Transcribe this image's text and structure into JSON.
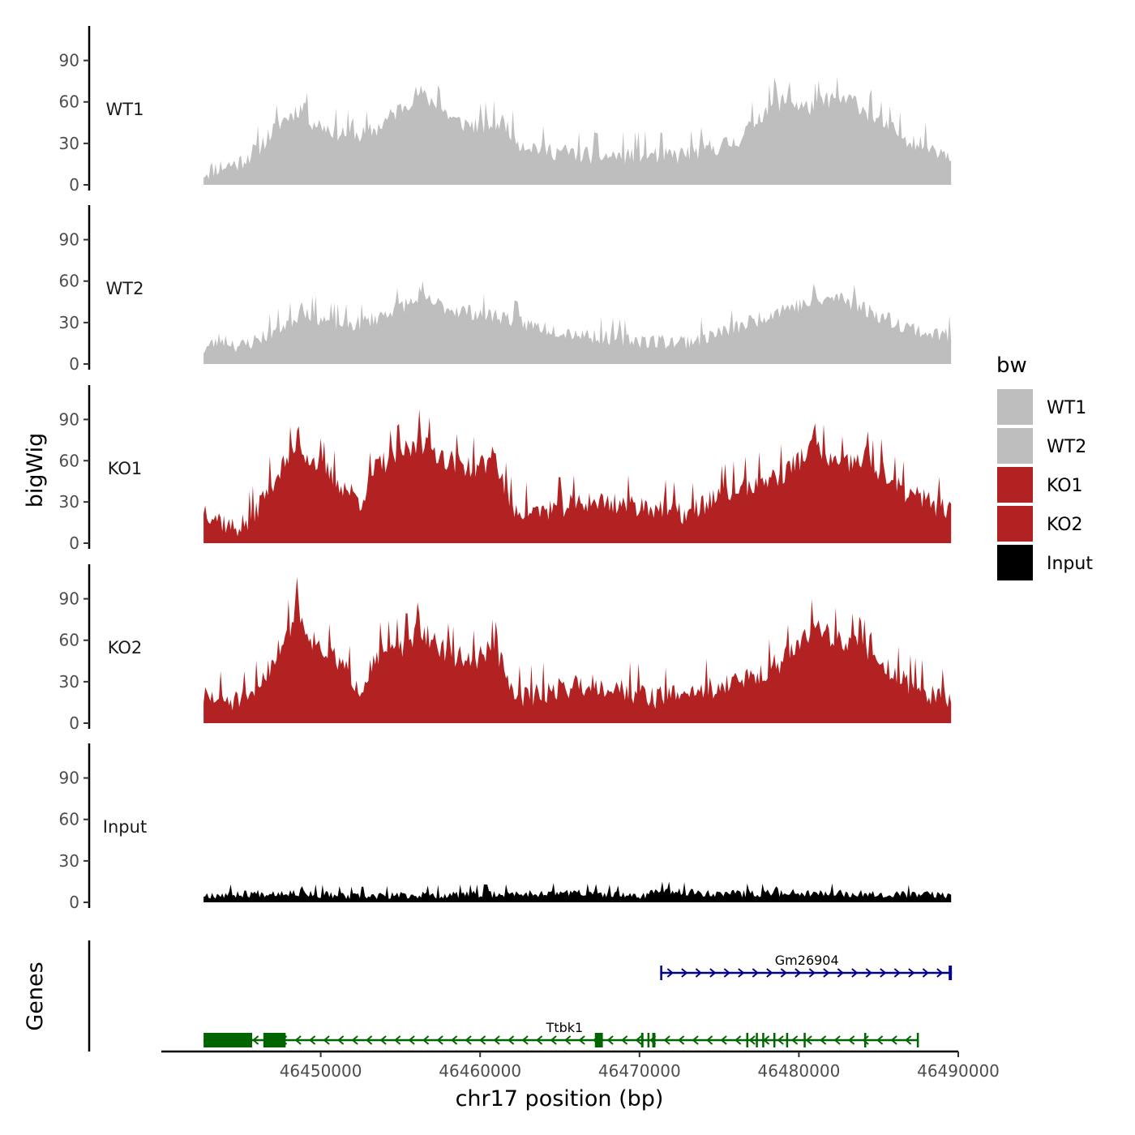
{
  "chart_data": {
    "type": "area",
    "ylabel": "bigWig",
    "xlabel": "chr17 position (bp)",
    "genes_label": "Genes",
    "xlim": [
      46440000,
      46490000
    ],
    "ylim": [
      0,
      115
    ],
    "y_ticks": [
      0,
      30,
      60,
      90
    ],
    "x_ticks": [
      46450000,
      46460000,
      46470000,
      46480000,
      46490000
    ],
    "x_tick_labels": [
      "46450000",
      "46460000",
      "46470000",
      "46480000",
      "46490000"
    ],
    "x_range_data": [
      46442650,
      46489550
    ],
    "legend": {
      "title": "bw",
      "entries": [
        {
          "label": "WT1",
          "color": "#bebebe"
        },
        {
          "label": "WT2",
          "color": "#bebebe"
        },
        {
          "label": "KO1",
          "color": "#b22222"
        },
        {
          "label": "KO2",
          "color": "#b22222"
        },
        {
          "label": "Input",
          "color": "#000000"
        }
      ]
    },
    "series": [
      {
        "name": "WT1",
        "color": "#bebebe",
        "profile": [
          [
            46442650,
            8
          ],
          [
            46443500,
            12
          ],
          [
            46444800,
            15
          ],
          [
            46446000,
            25
          ],
          [
            46447500,
            45
          ],
          [
            46448700,
            55
          ],
          [
            46449500,
            45
          ],
          [
            46451000,
            38
          ],
          [
            46452500,
            35
          ],
          [
            46453500,
            40
          ],
          [
            46454500,
            50
          ],
          [
            46456000,
            65
          ],
          [
            46457000,
            60
          ],
          [
            46458500,
            45
          ],
          [
            46460000,
            42
          ],
          [
            46461500,
            45
          ],
          [
            46462500,
            30
          ],
          [
            46464000,
            25
          ],
          [
            46466000,
            22
          ],
          [
            46468000,
            20
          ],
          [
            46470000,
            22
          ],
          [
            46472000,
            20
          ],
          [
            46474000,
            25
          ],
          [
            46476000,
            30
          ],
          [
            46478000,
            55
          ],
          [
            46479000,
            60
          ],
          [
            46480500,
            55
          ],
          [
            46482000,
            62
          ],
          [
            46483500,
            60
          ],
          [
            46485000,
            45
          ],
          [
            46486500,
            35
          ],
          [
            46488000,
            28
          ],
          [
            46489550,
            22
          ]
        ],
        "peaks": [
          [
            46449000,
            63
          ],
          [
            46456300,
            72
          ],
          [
            46457400,
            78
          ],
          [
            46478500,
            82
          ],
          [
            46479400,
            78
          ],
          [
            46484500,
            74
          ],
          [
            46452000,
            50
          ]
        ],
        "noise": 7,
        "seed": 11
      },
      {
        "name": "WT2",
        "color": "#bebebe",
        "profile": [
          [
            46442650,
            10
          ],
          [
            46443800,
            18
          ],
          [
            46445000,
            12
          ],
          [
            46446500,
            20
          ],
          [
            46448000,
            30
          ],
          [
            46449000,
            38
          ],
          [
            46450500,
            30
          ],
          [
            46452000,
            28
          ],
          [
            46453500,
            33
          ],
          [
            46455000,
            42
          ],
          [
            46456500,
            46
          ],
          [
            46458000,
            40
          ],
          [
            46460000,
            36
          ],
          [
            46461500,
            34
          ],
          [
            46463000,
            28
          ],
          [
            46465000,
            24
          ],
          [
            46467000,
            20
          ],
          [
            46469000,
            18
          ],
          [
            46471000,
            16
          ],
          [
            46473000,
            16
          ],
          [
            46475000,
            22
          ],
          [
            46477000,
            30
          ],
          [
            46479000,
            40
          ],
          [
            46481000,
            44
          ],
          [
            46482500,
            48
          ],
          [
            46484000,
            40
          ],
          [
            46486000,
            30
          ],
          [
            46488000,
            22
          ],
          [
            46489550,
            20
          ]
        ],
        "peaks": [
          [
            46448800,
            48
          ],
          [
            46456200,
            56
          ],
          [
            46483500,
            60
          ],
          [
            46481000,
            56
          ]
        ],
        "noise": 6,
        "seed": 23
      },
      {
        "name": "KO1",
        "color": "#b22222",
        "profile": [
          [
            46442650,
            25
          ],
          [
            46443500,
            18
          ],
          [
            46444500,
            10
          ],
          [
            46445500,
            15
          ],
          [
            46447000,
            45
          ],
          [
            46448500,
            70
          ],
          [
            46449500,
            60
          ],
          [
            46451000,
            45
          ],
          [
            46452500,
            30
          ],
          [
            46453500,
            55
          ],
          [
            46455000,
            65
          ],
          [
            46456500,
            72
          ],
          [
            46458000,
            60
          ],
          [
            46459500,
            55
          ],
          [
            46461000,
            58
          ],
          [
            46462000,
            25
          ],
          [
            46463500,
            22
          ],
          [
            46465000,
            26
          ],
          [
            46467000,
            30
          ],
          [
            46469000,
            28
          ],
          [
            46471000,
            26
          ],
          [
            46473000,
            20
          ],
          [
            46475000,
            35
          ],
          [
            46477000,
            42
          ],
          [
            46479000,
            50
          ],
          [
            46481000,
            70
          ],
          [
            46482500,
            55
          ],
          [
            46484000,
            60
          ],
          [
            46485500,
            45
          ],
          [
            46487000,
            35
          ],
          [
            46488500,
            28
          ],
          [
            46489550,
            22
          ]
        ],
        "peaks": [
          [
            46448600,
            88
          ],
          [
            46456200,
            100
          ],
          [
            46460800,
            75
          ],
          [
            46481000,
            90
          ],
          [
            46484300,
            86
          ],
          [
            46485200,
            80
          ]
        ],
        "noise": 9,
        "seed": 37
      },
      {
        "name": "KO2",
        "color": "#b22222",
        "profile": [
          [
            46442650,
            18
          ],
          [
            46444000,
            16
          ],
          [
            46445500,
            15
          ],
          [
            46447000,
            45
          ],
          [
            46448500,
            80
          ],
          [
            46449500,
            60
          ],
          [
            46451000,
            45
          ],
          [
            46452500,
            25
          ],
          [
            46453500,
            50
          ],
          [
            46455000,
            55
          ],
          [
            46456500,
            65
          ],
          [
            46458000,
            50
          ],
          [
            46459500,
            45
          ],
          [
            46461000,
            55
          ],
          [
            46462000,
            20
          ],
          [
            46463500,
            20
          ],
          [
            46465000,
            25
          ],
          [
            46467000,
            28
          ],
          [
            46469000,
            24
          ],
          [
            46471000,
            18
          ],
          [
            46473000,
            22
          ],
          [
            46475000,
            26
          ],
          [
            46477000,
            32
          ],
          [
            46479000,
            45
          ],
          [
            46481000,
            70
          ],
          [
            46482500,
            60
          ],
          [
            46484000,
            55
          ],
          [
            46485500,
            40
          ],
          [
            46487000,
            28
          ],
          [
            46488500,
            20
          ],
          [
            46489550,
            15
          ]
        ],
        "peaks": [
          [
            46448500,
            108
          ],
          [
            46456100,
            90
          ],
          [
            46461000,
            75
          ],
          [
            46481200,
            78
          ],
          [
            46483900,
            74
          ],
          [
            46484500,
            72
          ]
        ],
        "noise": 9,
        "seed": 51
      },
      {
        "name": "Input",
        "color": "#000000",
        "profile": [
          [
            46442650,
            5
          ],
          [
            46448000,
            7
          ],
          [
            46452000,
            4
          ],
          [
            46456000,
            5
          ],
          [
            46462000,
            6
          ],
          [
            46466000,
            7
          ],
          [
            46470000,
            4
          ],
          [
            46471000,
            8
          ],
          [
            46476000,
            6
          ],
          [
            46480000,
            7
          ],
          [
            46485000,
            6
          ],
          [
            46489550,
            5
          ]
        ],
        "peaks": [
          [
            46448800,
            13
          ],
          [
            46478600,
            13
          ]
        ],
        "noise": 3,
        "seed": 67
      }
    ],
    "genes": [
      {
        "name": "Gm26904",
        "strand": "+",
        "color": "#00008b",
        "start": 46471300,
        "end": 46489600,
        "exons": [
          [
            46471300,
            46471380
          ],
          [
            46489400,
            46489600
          ]
        ]
      },
      {
        "name": "Ttbk1",
        "strand": "-",
        "color": "#006400",
        "start": 46442650,
        "end": 46487500,
        "exons": [
          [
            46442650,
            46445700
          ],
          [
            46446400,
            46447800
          ],
          [
            46467200,
            46467700
          ],
          [
            46470100,
            46470250
          ],
          [
            46470500,
            46470600
          ],
          [
            46470800,
            46471000
          ],
          [
            46476700,
            46476800
          ],
          [
            46477300,
            46477400
          ],
          [
            46477700,
            46477800
          ],
          [
            46478400,
            46478500
          ],
          [
            46479200,
            46479300
          ],
          [
            46480300,
            46480400
          ],
          [
            46484100,
            46484200
          ],
          [
            46487400,
            46487500
          ]
        ]
      }
    ]
  }
}
